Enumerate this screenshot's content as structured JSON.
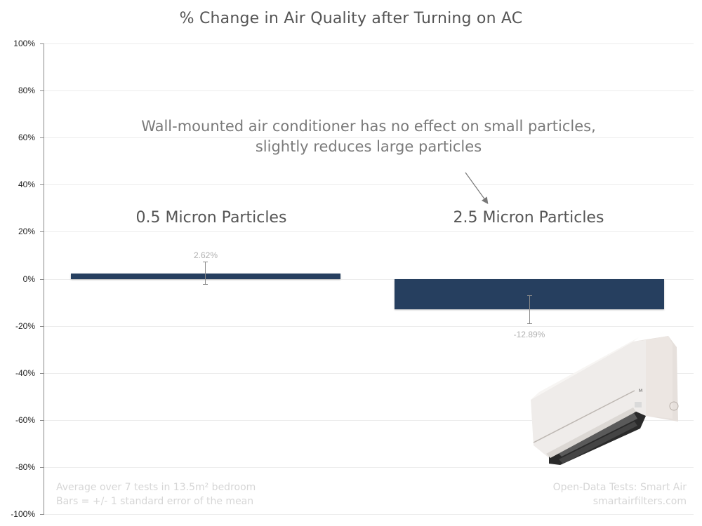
{
  "title": "% Change in Air Quality after Turning on AC",
  "annotation": {
    "line1": "Wall-mounted air conditioner has no effect on small particles,",
    "line2": "slightly reduces large particles"
  },
  "footnote_left": {
    "line1": "Average over 7 tests in 13.5m² bedroom",
    "line2": "Bars =  +/- 1  standard error of the mean"
  },
  "footnote_right": {
    "line1": "Open-Data Tests: Smart Air",
    "line2": "smartairfilters.com"
  },
  "image": {
    "icon": "air-conditioner-photo",
    "description": "Wall-mounted split air conditioner unit with louver open"
  },
  "colors": {
    "bar": "#263f5f",
    "title": "#555555",
    "annotation": "#7a7a7a",
    "value_label": "#b0b0b0",
    "footnote": "#d6d6d6"
  },
  "y_ticks": [
    "100%",
    "80%",
    "60%",
    "40%",
    "20%",
    "0%",
    "-20%",
    "-40%",
    "-60%",
    "-80%",
    "-100%"
  ],
  "categories": [
    "0.5 Micron Particles",
    "2.5 Micron Particles"
  ],
  "value_labels": [
    "2.62%",
    "-12.89%"
  ],
  "chart_data": {
    "type": "bar",
    "title": "% Change in Air Quality after Turning on AC",
    "xlabel": "",
    "ylabel": "",
    "categories": [
      "0.5 Micron Particles",
      "2.5 Micron Particles"
    ],
    "values": [
      2.62,
      -12.89
    ],
    "units": "%",
    "error_bars": [
      {
        "category": "0.5 Micron Particles",
        "low": -2.2,
        "high": 7.4
      },
      {
        "category": "2.5 Micron Particles",
        "low": -18.8,
        "high": -7.0
      }
    ],
    "error_bar_meaning": "+/- 1 standard error of the mean",
    "ylim": [
      -100,
      100
    ],
    "y_ticks": [
      100,
      80,
      60,
      40,
      20,
      0,
      -20,
      -40,
      -60,
      -80,
      -100
    ],
    "grid": true,
    "legend": "none",
    "annotations": [
      "Wall-mounted air conditioner has no effect on small particles, slightly reduces large particles",
      "Average over 7 tests in 13.5m² bedroom",
      "Bars =  +/- 1  standard error of the mean",
      "Open-Data Tests: Smart Air",
      "smartairfilters.com"
    ]
  }
}
